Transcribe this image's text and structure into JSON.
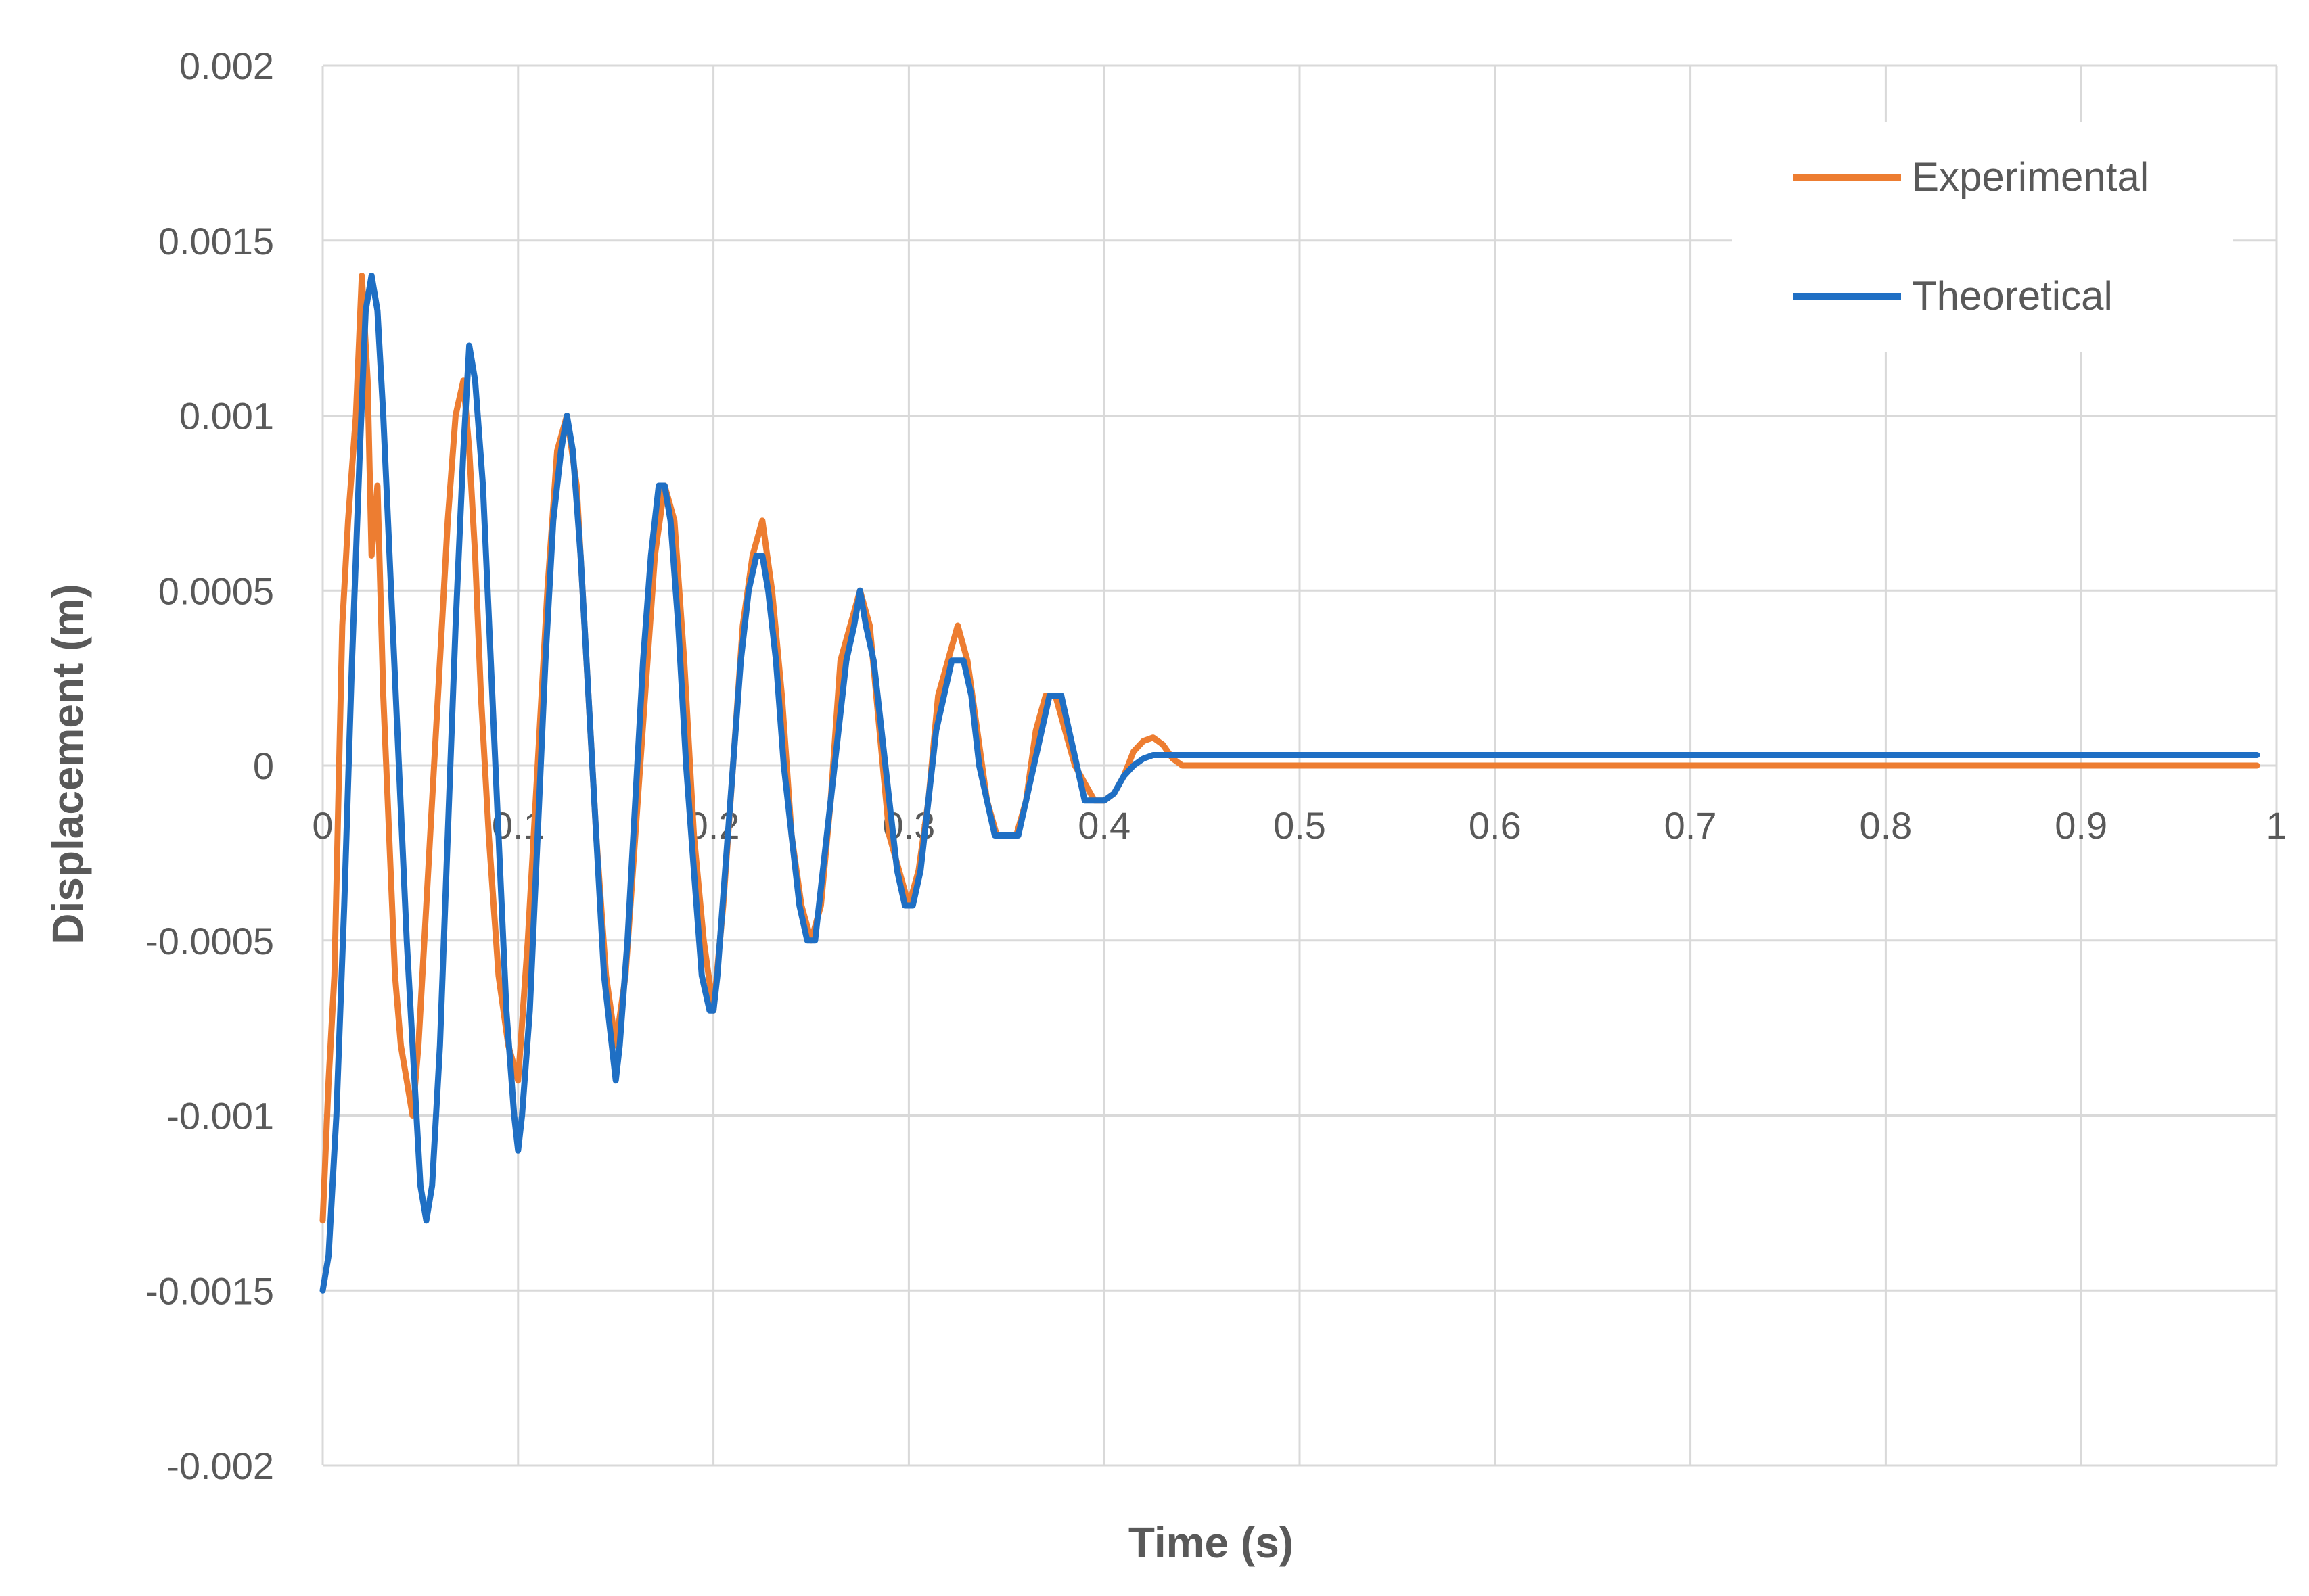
{
  "chart_data": {
    "type": "line",
    "xlabel": "Time (s)",
    "ylabel": "Displacement (m)",
    "xlim": [
      0,
      1
    ],
    "ylim": [
      -0.002,
      0.002
    ],
    "xticks": [
      0,
      0.1,
      0.2,
      0.3,
      0.4,
      0.5,
      0.6,
      0.7,
      0.8,
      0.9,
      1
    ],
    "xtick_labels": [
      "0",
      "0.1",
      "0.2",
      "0.3",
      "0.4",
      "0.5",
      "0.6",
      "0.7",
      "0.8",
      "0.9",
      "1"
    ],
    "yticks": [
      -0.002,
      -0.0015,
      -0.001,
      -0.0005,
      0,
      0.0005,
      0.001,
      0.0015,
      0.002
    ],
    "ytick_labels": [
      "-0.002",
      "-0.0015",
      "-0.001",
      "-0.0005",
      "0",
      "0.0005",
      "0.001",
      "0.0015",
      "0.002"
    ],
    "grid": true,
    "legend_position": "top-right",
    "series": [
      {
        "name": "Experimental",
        "color": "#ED7D31",
        "x": [
          0,
          0.003,
          0.006,
          0.01,
          0.013,
          0.017,
          0.02,
          0.023,
          0.025,
          0.028,
          0.031,
          0.034,
          0.037,
          0.04,
          0.043,
          0.046,
          0.049,
          0.052,
          0.056,
          0.06,
          0.064,
          0.068,
          0.072,
          0.075,
          0.078,
          0.081,
          0.085,
          0.09,
          0.095,
          0.1,
          0.105,
          0.11,
          0.115,
          0.12,
          0.125,
          0.13,
          0.135,
          0.14,
          0.145,
          0.15,
          0.155,
          0.16,
          0.165,
          0.17,
          0.175,
          0.18,
          0.185,
          0.19,
          0.195,
          0.2,
          0.205,
          0.21,
          0.215,
          0.22,
          0.225,
          0.23,
          0.235,
          0.24,
          0.245,
          0.25,
          0.255,
          0.26,
          0.265,
          0.27,
          0.275,
          0.28,
          0.285,
          0.29,
          0.295,
          0.3,
          0.305,
          0.31,
          0.315,
          0.32,
          0.325,
          0.33,
          0.335,
          0.34,
          0.345,
          0.35,
          0.355,
          0.36,
          0.365,
          0.37,
          0.375,
          0.38,
          0.385,
          0.39,
          0.395,
          0.4,
          0.405,
          0.41,
          0.415,
          0.42,
          0.425,
          0.43,
          0.435,
          0.44,
          0.46,
          0.5,
          0.55,
          0.6,
          0.65,
          0.7,
          0.75,
          0.8,
          0.85,
          0.9,
          0.95,
          0.99
        ],
        "y": [
          -0.0013,
          -0.0009,
          -0.0006,
          0.0004,
          0.0007,
          0.001,
          0.0014,
          0.0011,
          0.0006,
          0.0008,
          0.0002,
          -0.0002,
          -0.0006,
          -0.0008,
          -0.0009,
          -0.001,
          -0.0008,
          -0.0005,
          -0.0001,
          0.0003,
          0.0007,
          0.001,
          0.0011,
          0.0009,
          0.0006,
          0.0002,
          -0.0002,
          -0.0006,
          -0.0008,
          -0.0009,
          -0.0005,
          0.0,
          0.0005,
          0.0009,
          0.001,
          0.0008,
          0.0003,
          -0.0002,
          -0.0006,
          -0.0008,
          -0.0006,
          -0.0002,
          0.0002,
          0.0006,
          0.0008,
          0.0007,
          0.0003,
          -0.0002,
          -0.0005,
          -0.0007,
          -0.0004,
          0.0,
          0.0004,
          0.0006,
          0.0007,
          0.0005,
          0.0002,
          -0.0002,
          -0.0004,
          -0.0005,
          -0.0004,
          -0.0001,
          0.0003,
          0.0004,
          0.0005,
          0.0004,
          0.0001,
          -0.0002,
          -0.0003,
          -0.0004,
          -0.0003,
          -0.0001,
          0.0002,
          0.0003,
          0.0004,
          0.0003,
          0.0001,
          -0.0001,
          -0.0002,
          -0.0002,
          -0.0002,
          -0.0001,
          0.0001,
          0.0002,
          0.0002,
          0.0001,
          0.0,
          -5e-05,
          -0.0001,
          -0.0001,
          -8e-05,
          -3e-05,
          4e-05,
          7e-05,
          8e-05,
          6e-05,
          2e-05,
          0.0,
          0.0,
          0.0,
          0.0,
          0.0,
          0.0,
          0.0,
          0.0,
          0.0,
          0.0,
          0.0,
          0.0,
          0.0
        ]
      },
      {
        "name": "Theoretical",
        "color": "#1F6FC4",
        "x": [
          0,
          0.003,
          0.007,
          0.011,
          0.015,
          0.019,
          0.022,
          0.025,
          0.028,
          0.031,
          0.035,
          0.039,
          0.043,
          0.047,
          0.05,
          0.053,
          0.056,
          0.06,
          0.064,
          0.068,
          0.072,
          0.075,
          0.078,
          0.082,
          0.086,
          0.09,
          0.094,
          0.098,
          0.1,
          0.102,
          0.106,
          0.11,
          0.114,
          0.118,
          0.122,
          0.125,
          0.128,
          0.132,
          0.136,
          0.14,
          0.144,
          0.148,
          0.15,
          0.152,
          0.156,
          0.16,
          0.164,
          0.168,
          0.172,
          0.175,
          0.178,
          0.182,
          0.186,
          0.19,
          0.194,
          0.198,
          0.2,
          0.202,
          0.206,
          0.21,
          0.214,
          0.218,
          0.222,
          0.225,
          0.228,
          0.232,
          0.236,
          0.24,
          0.244,
          0.248,
          0.25,
          0.252,
          0.256,
          0.26,
          0.264,
          0.268,
          0.272,
          0.275,
          0.278,
          0.282,
          0.286,
          0.29,
          0.294,
          0.298,
          0.3,
          0.302,
          0.306,
          0.31,
          0.314,
          0.318,
          0.322,
          0.325,
          0.328,
          0.332,
          0.336,
          0.34,
          0.344,
          0.348,
          0.35,
          0.352,
          0.356,
          0.36,
          0.364,
          0.368,
          0.372,
          0.375,
          0.378,
          0.382,
          0.386,
          0.39,
          0.394,
          0.398,
          0.4,
          0.405,
          0.41,
          0.415,
          0.42,
          0.425,
          0.43,
          0.45,
          0.5,
          0.6,
          0.7,
          0.8,
          0.9,
          0.99
        ],
        "y": [
          -0.0015,
          -0.0014,
          -0.001,
          -0.0004,
          0.0003,
          0.0009,
          0.0013,
          0.0014,
          0.0013,
          0.001,
          0.0005,
          0.0,
          -0.0005,
          -0.0009,
          -0.0012,
          -0.0013,
          -0.0012,
          -0.0008,
          -0.0002,
          0.0004,
          0.0009,
          0.0012,
          0.0011,
          0.0008,
          0.0003,
          -0.0002,
          -0.0007,
          -0.001,
          -0.0011,
          -0.001,
          -0.0007,
          -0.0002,
          0.0003,
          0.0007,
          0.0009,
          0.001,
          0.0009,
          0.0006,
          0.0002,
          -0.0002,
          -0.0006,
          -0.0008,
          -0.0009,
          -0.0008,
          -0.0005,
          -0.0001,
          0.0003,
          0.0006,
          0.0008,
          0.0008,
          0.0007,
          0.0004,
          0.0,
          -0.0003,
          -0.0006,
          -0.0007,
          -0.0007,
          -0.0006,
          -0.0003,
          0.0,
          0.0003,
          0.0005,
          0.0006,
          0.0006,
          0.0005,
          0.0003,
          0.0,
          -0.0002,
          -0.0004,
          -0.0005,
          -0.0005,
          -0.0005,
          -0.0003,
          -0.0001,
          0.0001,
          0.0003,
          0.0004,
          0.0005,
          0.0004,
          0.0003,
          0.0001,
          -0.0001,
          -0.0003,
          -0.0004,
          -0.0004,
          -0.0004,
          -0.0003,
          -0.0001,
          0.0001,
          0.0002,
          0.0003,
          0.0003,
          0.0003,
          0.0002,
          0.0,
          -0.0001,
          -0.0002,
          -0.0002,
          -0.0002,
          -0.0002,
          -0.0002,
          -0.0001,
          0.0,
          0.0001,
          0.0002,
          0.0002,
          0.0002,
          0.0001,
          0.0,
          -0.0001,
          -0.0001,
          -0.0001,
          -0.0001,
          -8e-05,
          -3e-05,
          0.0,
          2e-05,
          3e-05,
          3e-05,
          3e-05,
          3e-05,
          3e-05,
          3e-05,
          3e-05,
          3e-05,
          3e-05
        ]
      }
    ]
  }
}
